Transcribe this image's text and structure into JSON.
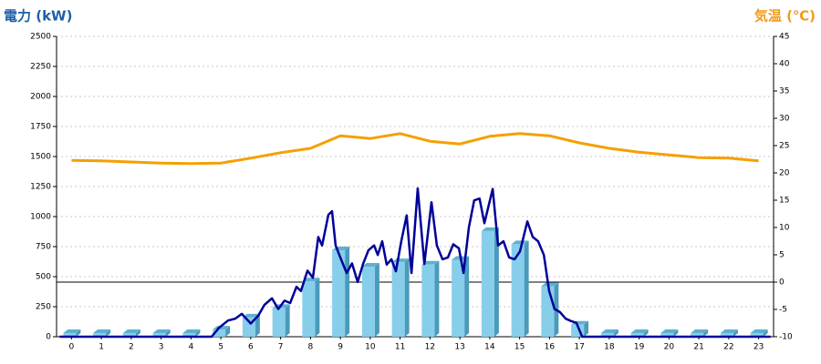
{
  "chart_data": {
    "type": "bar",
    "y_label": "電力 (kW)",
    "y2_label": "気温 (℃)",
    "categories": [
      "0",
      "1",
      "2",
      "3",
      "4",
      "5",
      "6",
      "7",
      "8",
      "9",
      "10",
      "11",
      "12",
      "13",
      "14",
      "15",
      "16",
      "17",
      "18",
      "19",
      "20",
      "21",
      "22",
      "23"
    ],
    "ylim": [
      0,
      2500
    ],
    "yticks": [
      0,
      250,
      500,
      750,
      1000,
      1250,
      1500,
      1750,
      2000,
      2250,
      2500
    ],
    "y2lim": [
      -10,
      45
    ],
    "y2ticks": [
      -10,
      -5,
      0,
      5,
      10,
      15,
      20,
      25,
      30,
      35,
      40,
      45
    ],
    "xlim": [
      -0.5,
      23.5
    ],
    "grid": true,
    "series": [
      {
        "type": "bar",
        "color": "#87ceeb",
        "values": [
          30,
          30,
          30,
          30,
          30,
          60,
          160,
          240,
          460,
          720,
          583,
          620,
          600,
          640,
          880,
          770,
          420,
          100,
          30,
          30,
          30,
          30,
          30,
          30
        ]
      },
      {
        "type": "line",
        "color": "#000099",
        "x": [
          -0.4,
          4.69,
          4.94,
          5.24,
          5.48,
          5.7,
          6.0,
          6.25,
          6.46,
          6.71,
          6.92,
          7.13,
          7.32,
          7.53,
          7.68,
          7.9,
          8.08,
          8.26,
          8.39,
          8.6,
          8.72,
          8.84,
          9.03,
          9.21,
          9.39,
          9.58,
          9.76,
          9.94,
          10.13,
          10.25,
          10.4,
          10.55,
          10.71,
          10.86,
          11.04,
          11.22,
          11.38,
          11.59,
          11.81,
          12.05,
          12.23,
          12.42,
          12.6,
          12.78,
          12.97,
          13.12,
          13.3,
          13.48,
          13.66,
          13.82,
          14.1,
          14.28,
          14.46,
          14.65,
          14.83,
          15.01,
          15.26,
          15.44,
          15.62,
          15.81,
          15.99,
          16.17,
          16.35,
          16.54,
          16.72,
          16.9,
          17.09,
          23.4
        ],
        "values": [
          0,
          0,
          75,
          135,
          150,
          190,
          110,
          175,
          265,
          320,
          230,
          300,
          280,
          415,
          380,
          550,
          490,
          830,
          760,
          1015,
          1045,
          760,
          640,
          530,
          610,
          455,
          605,
          720,
          760,
          680,
          795,
          600,
          645,
          545,
          795,
          1010,
          530,
          1235,
          605,
          1120,
          760,
          645,
          660,
          770,
          735,
          530,
          910,
          1135,
          1150,
          945,
          1230,
          760,
          795,
          660,
          645,
          710,
          960,
          830,
          795,
          680,
          380,
          230,
          205,
          150,
          130,
          115,
          0,
          0
        ]
      },
      {
        "type": "line",
        "axis": "y2",
        "color": "#f5a000",
        "values": [
          22.3,
          22.2,
          22.0,
          21.8,
          21.7,
          21.8,
          22.7,
          23.7,
          24.5,
          26.8,
          26.3,
          27.2,
          25.8,
          25.3,
          26.7,
          27.2,
          26.8,
          25.5,
          24.5,
          23.8,
          23.3,
          22.8,
          22.7,
          22.2
        ]
      }
    ]
  }
}
